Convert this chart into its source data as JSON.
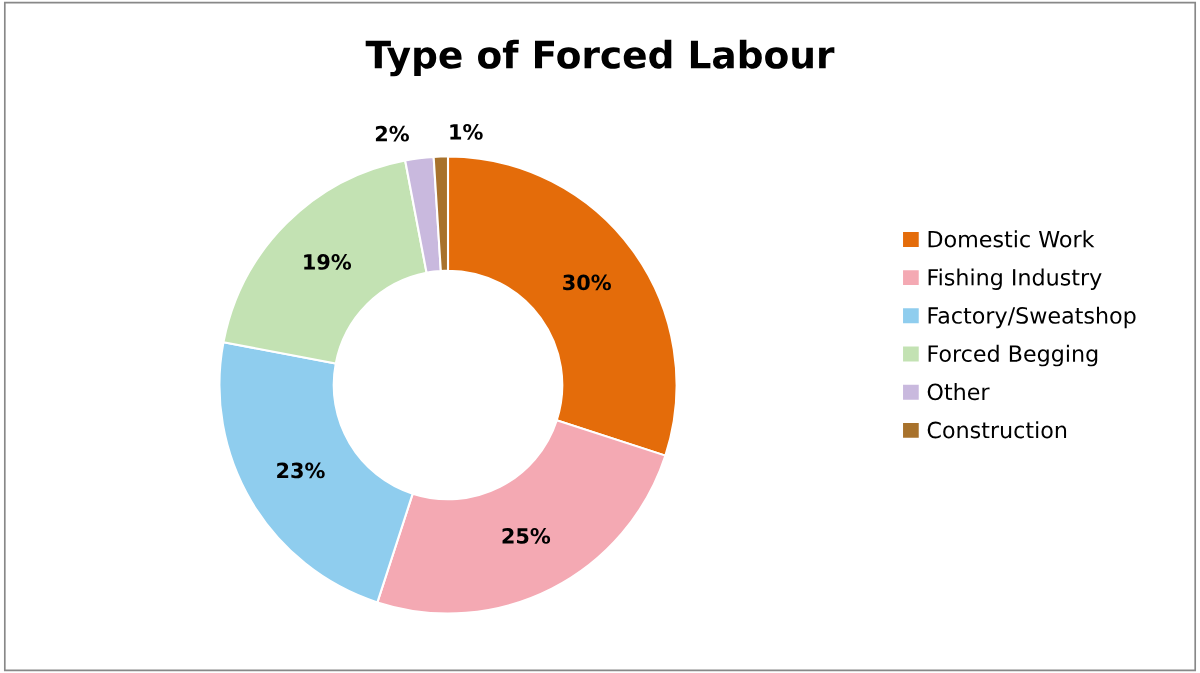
{
  "chart_data": {
    "type": "donut",
    "title": "Type of Forced Labour",
    "categories": [
      "Domestic Work",
      "Fishing Industry",
      "Factory/Sweatshop",
      "Forced Begging",
      "Other",
      "Construction"
    ],
    "values": [
      30,
      25,
      23,
      19,
      2,
      1
    ],
    "colors": [
      "#e46c0a",
      "#f4a9b3",
      "#8fcdee",
      "#c3e2b3",
      "#c9b9de",
      "#a8722c"
    ],
    "value_labels": [
      "30%",
      "25%",
      "23%",
      "19%",
      "2%",
      "1%"
    ],
    "legend": "right"
  }
}
